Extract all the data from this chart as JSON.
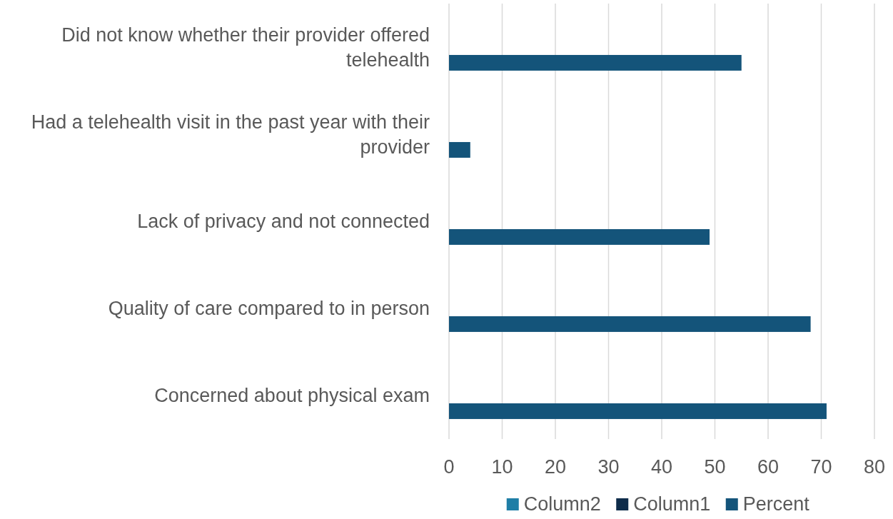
{
  "chart_data": {
    "type": "bar",
    "orientation": "horizontal",
    "categories": [
      "Did not know whether their provider offered telehealth",
      "Had a telehealth visit in the past year with their provider",
      "Lack of privacy and not connected",
      "Quality of care compared to in person",
      "Concerned about physical exam"
    ],
    "series": [
      {
        "name": "Column2",
        "color": "#1f7ea6",
        "values": [
          null,
          null,
          null,
          null,
          null
        ]
      },
      {
        "name": "Column1",
        "color": "#0e2c4a",
        "values": [
          null,
          null,
          null,
          null,
          null
        ]
      },
      {
        "name": "Percent",
        "color": "#14547a",
        "values": [
          55,
          4,
          49,
          68,
          71
        ]
      }
    ],
    "xlim": [
      0,
      80
    ],
    "xticks": [
      0,
      10,
      20,
      30,
      40,
      50,
      60,
      70,
      80
    ],
    "grid": "x",
    "legend": "bottom"
  }
}
